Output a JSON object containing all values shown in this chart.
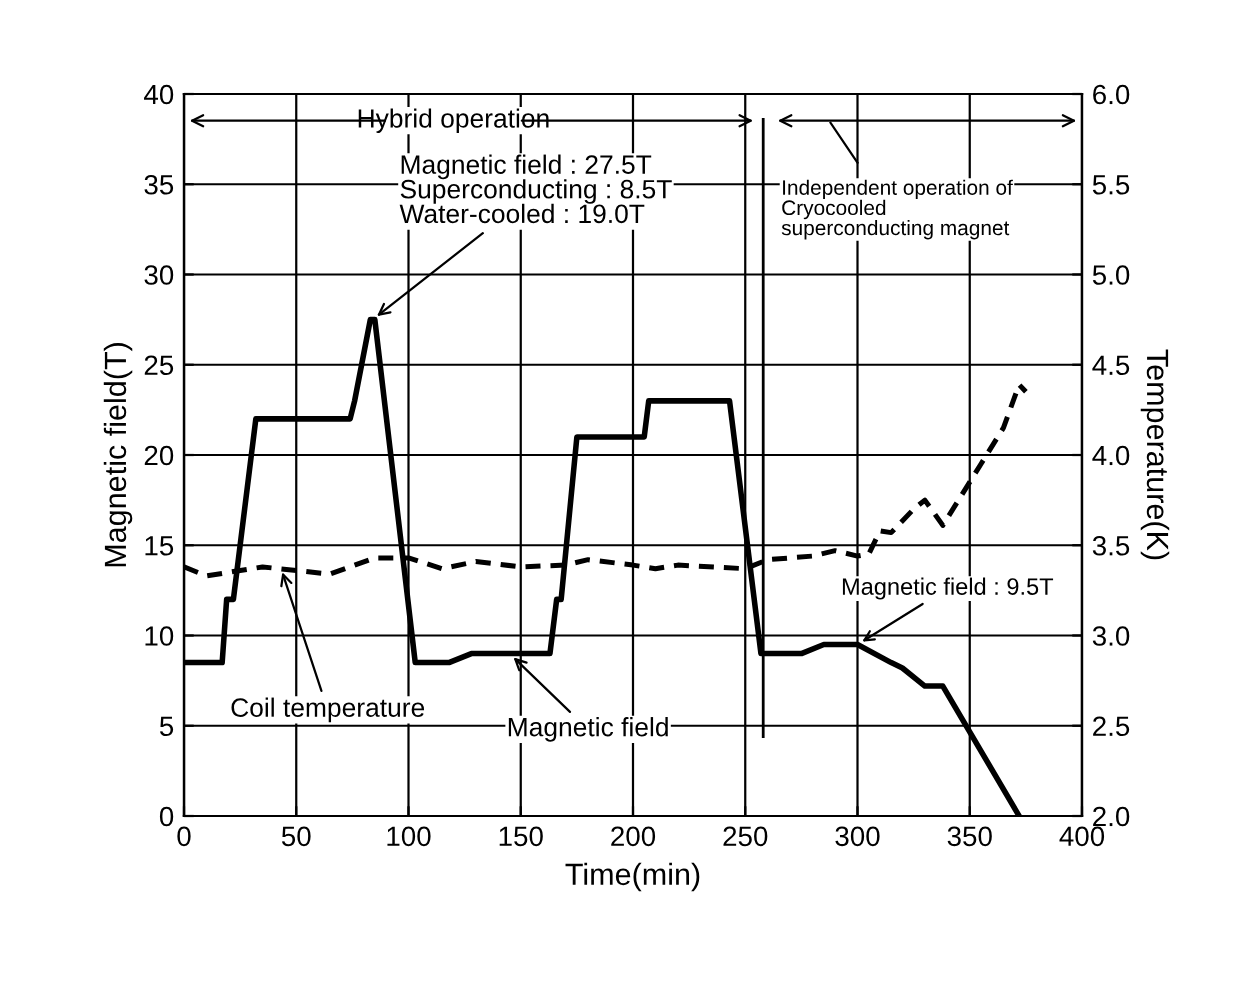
{
  "chart_data": {
    "type": "line",
    "xlabel": "Time(min)",
    "ylabel": "Magnetic field(T)",
    "y2label": "Temperature(K)",
    "xlim": [
      0,
      400
    ],
    "xticks": [
      0,
      50,
      100,
      150,
      200,
      250,
      300,
      350,
      400
    ],
    "ylim": [
      0,
      40
    ],
    "yticks": [
      0,
      5,
      10,
      15,
      20,
      25,
      30,
      35,
      40
    ],
    "y2lim": [
      2.0,
      6.0
    ],
    "y2ticks": [
      {
        "value": 2.0,
        "label": "2.0"
      },
      {
        "value": 2.5,
        "label": "2.5"
      },
      {
        "value": 3.0,
        "label": "3.0"
      },
      {
        "value": 3.5,
        "label": "3.5"
      },
      {
        "value": 4.0,
        "label": "4.0"
      },
      {
        "value": 4.5,
        "label": "4.5"
      },
      {
        "value": 5.0,
        "label": "5.0"
      },
      {
        "value": 5.5,
        "label": "5.5"
      },
      {
        "value": 6.0,
        "label": "6.0"
      }
    ],
    "grid": true,
    "series": [
      {
        "color": "#000000",
        "line_style": "solid",
        "x": [
          0,
          17,
          19,
          22,
          32,
          74,
          76,
          83,
          85,
          103,
          118,
          128,
          163,
          166,
          168,
          175,
          205,
          207,
          243,
          257,
          275,
          285,
          300,
          315,
          320,
          330,
          338,
          372
        ],
        "values": [
          8.5,
          8.5,
          12,
          12,
          22,
          22,
          23,
          27.5,
          27.5,
          8.5,
          8.5,
          9,
          9,
          12,
          12,
          21,
          21,
          23,
          23,
          9,
          9,
          9.5,
          9.5,
          8.5,
          8.2,
          7.2,
          7.2,
          0
        ]
      },
      {
        "color": "#000000",
        "line_style": "dashed",
        "axis": "y2",
        "x": [
          0,
          10,
          35,
          65,
          85,
          100,
          115,
          130,
          150,
          170,
          180,
          200,
          210,
          220,
          250,
          260,
          280,
          290,
          300,
          305,
          310,
          315,
          325,
          330,
          338,
          345,
          355,
          365,
          372,
          375
        ],
        "values": [
          3.38,
          3.33,
          3.38,
          3.34,
          3.43,
          3.43,
          3.37,
          3.41,
          3.38,
          3.39,
          3.42,
          3.39,
          3.37,
          3.39,
          3.37,
          3.42,
          3.44,
          3.47,
          3.44,
          3.45,
          3.58,
          3.57,
          3.7,
          3.75,
          3.61,
          3.75,
          3.95,
          4.15,
          4.39,
          4.35
        ]
      }
    ],
    "ref_lines": [
      {
        "axis": "x",
        "value": 258,
        "label": null
      }
    ],
    "annotations": [
      "Hybrid operation",
      "Independent operation of\nCryocooled\nsuperconducting magnet",
      {
        "text": "Magnetic field : 27.5T\nSuperconducting : 8.5T\nWater-cooled : 19.0T",
        "x": 84,
        "y": 27.5
      },
      {
        "text": "Magnetic field : 9.5T",
        "x": 300,
        "y": 9.5
      },
      {
        "text": "Coil temperature",
        "x": 43,
        "y": 13.8
      },
      {
        "text": "Magnetic field",
        "x": 145,
        "y": 9
      }
    ]
  }
}
